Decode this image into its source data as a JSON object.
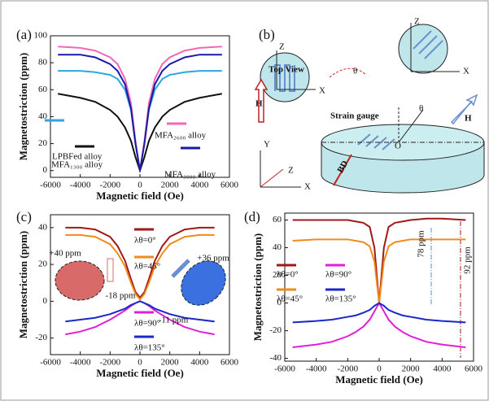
{
  "chart_data": [
    {
      "type": "line",
      "label": "(a)",
      "xlabel": "Magnetic field (Oe)",
      "ylabel": "Magnetostriction (ppm)",
      "x": [
        -5500,
        -4000,
        -3000,
        -2000,
        -1500,
        -1000,
        -600,
        -300,
        0,
        300,
        600,
        1000,
        1500,
        2000,
        3000,
        4000,
        5500
      ],
      "xlim": [
        -6000,
        6000
      ],
      "xticks": [
        -6000,
        -4000,
        -2000,
        0,
        2000,
        4000,
        6000
      ],
      "ylim": [
        -5,
        100
      ],
      "yticks": [
        0,
        20,
        40,
        60,
        80,
        100
      ],
      "series": [
        {
          "name": "LPBFed alloy",
          "color": "#111111",
          "values": [
            57,
            54,
            51,
            45,
            40,
            32,
            22,
            10,
            0,
            10,
            22,
            32,
            40,
            45,
            51,
            54,
            57
          ]
        },
        {
          "name": "MFA₁₃₀₀ alloy",
          "color": "#2aa7e0",
          "values": [
            74,
            74,
            73,
            71,
            68,
            60,
            45,
            20,
            0,
            20,
            45,
            60,
            68,
            71,
            73,
            74,
            74
          ]
        },
        {
          "name": "MFA₂₆₀₀ alloy",
          "color": "#f068b8",
          "values": [
            92,
            91,
            89,
            84,
            79,
            68,
            50,
            22,
            0,
            22,
            50,
            68,
            79,
            84,
            89,
            91,
            92
          ]
        },
        {
          "name": "MFA₃₉₀₀ alloy",
          "color": "#1a1aa8",
          "values": [
            86,
            86,
            84,
            79,
            74,
            64,
            46,
            20,
            0,
            20,
            46,
            64,
            74,
            79,
            84,
            86,
            86
          ]
        }
      ]
    },
    {
      "type": "line",
      "label": "(c)",
      "xlabel": "Magnetic field (Oe)",
      "ylabel": "Magnetostriction (ppm)",
      "x": [
        -5000,
        -4000,
        -3000,
        -2000,
        -1500,
        -1000,
        -600,
        -300,
        0,
        300,
        600,
        1000,
        1500,
        2000,
        3000,
        4000,
        5000
      ],
      "xlim": [
        -6000,
        6000
      ],
      "xticks": [
        -6000,
        -4000,
        -2000,
        0,
        2000,
        4000,
        6000
      ],
      "ylim": [
        -29,
        47
      ],
      "yticks": [
        -20,
        0,
        20,
        40
      ],
      "annotations": [
        "+40 ppm",
        "-18 ppm",
        "+36 ppm",
        "-11 ppm"
      ],
      "series": [
        {
          "name": "λθ=0°",
          "color": "#a01818",
          "values": [
            40,
            40,
            39,
            35,
            30,
            22,
            12,
            5,
            2,
            5,
            12,
            22,
            30,
            35,
            39,
            40,
            40
          ]
        },
        {
          "name": "λθ=45°",
          "color": "#f08a1c",
          "values": [
            36,
            36,
            35,
            31,
            26,
            19,
            10,
            4,
            1,
            4,
            10,
            19,
            26,
            31,
            35,
            36,
            36
          ]
        },
        {
          "name": "λθ=90°",
          "color": "#e020d8",
          "values": [
            -18,
            -16.5,
            -14,
            -10,
            -7.5,
            -5,
            -2.5,
            -1,
            0,
            -1,
            -2.5,
            -5,
            -7.5,
            -10,
            -14,
            -16.5,
            -18
          ]
        },
        {
          "name": "λθ=135°",
          "color": "#1a28c8",
          "values": [
            -11,
            -10,
            -9,
            -7,
            -5.5,
            -4,
            -2,
            -1,
            0,
            -1,
            -2,
            -4,
            -5.5,
            -7,
            -9,
            -10,
            -11
          ]
        }
      ]
    },
    {
      "type": "line",
      "label": "(d)",
      "xlabel": "Magnetic field (Oe)",
      "ylabel": "Magnetostriction (ppm)",
      "x": [
        -5500,
        -4000,
        -3000,
        -2000,
        -1500,
        -1000,
        -600,
        -300,
        0,
        300,
        600,
        1000,
        1500,
        2000,
        3000,
        4000,
        5500
      ],
      "xlim": [
        -6000,
        6000
      ],
      "xticks": [
        -6000,
        -4000,
        -2000,
        0,
        2000,
        4000,
        6000
      ],
      "ylim": [
        -42,
        65
      ],
      "yticks": [
        -40,
        -20,
        0,
        20,
        40,
        60
      ],
      "annotations": [
        "78 ppm",
        "92 ppm"
      ],
      "series": [
        {
          "name": "λθ=0°",
          "color": "#a01818",
          "values": [
            60,
            60,
            60,
            60,
            59,
            58,
            55,
            40,
            0,
            40,
            55,
            58,
            59,
            60,
            61,
            61,
            60
          ]
        },
        {
          "name": "λθ=90°",
          "color": "#e020d8",
          "values": [
            -32,
            -30,
            -28,
            -24,
            -21,
            -17,
            -12,
            -6,
            0,
            -6,
            -12,
            -17,
            -21,
            -24,
            -28,
            -30,
            -32
          ]
        },
        {
          "name": "λθ=45°",
          "color": "#f08a1c",
          "values": [
            45,
            46,
            46,
            46,
            45,
            44,
            41,
            30,
            0,
            30,
            41,
            44,
            45,
            46,
            46,
            46,
            46
          ]
        },
        {
          "name": "λθ=135°",
          "color": "#1a28c8",
          "values": [
            -14,
            -13,
            -12,
            -10,
            -9,
            -7,
            -5,
            -2,
            0,
            -2,
            -5,
            -7,
            -9,
            -10,
            -12,
            -13,
            -14
          ]
        }
      ]
    }
  ],
  "panel_b": {
    "labels": [
      "(b)",
      "Top View",
      "Z",
      "X",
      "H",
      "θ",
      "Z",
      "X",
      "H",
      "Strain gauge",
      "θ",
      "O",
      "Y",
      "Z",
      "X",
      "BD"
    ]
  }
}
